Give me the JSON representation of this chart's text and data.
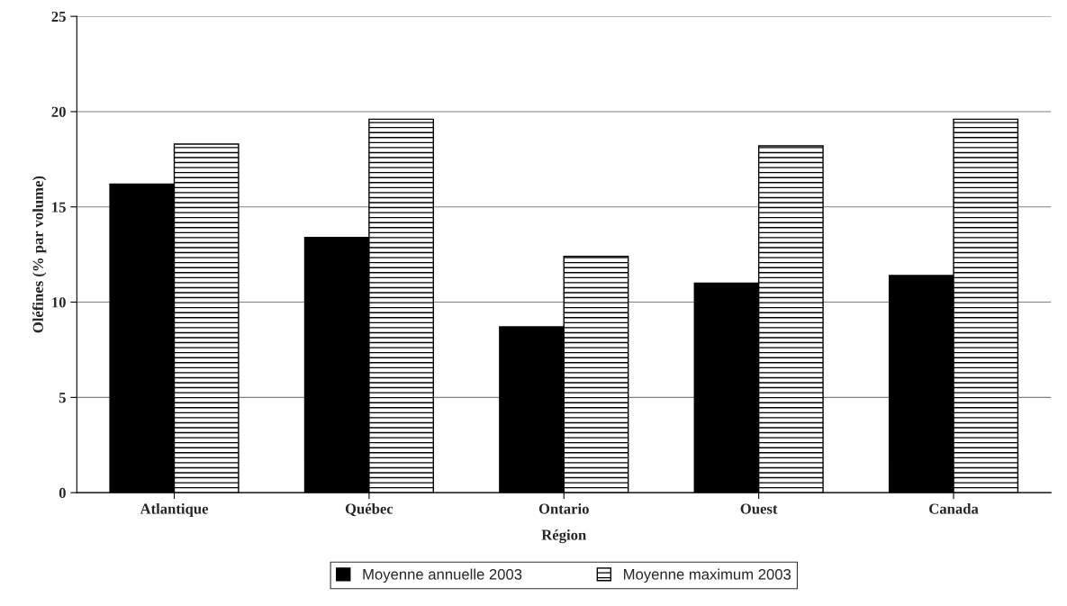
{
  "chart_data": {
    "type": "bar",
    "xlabel": "Région",
    "ylabel": "Oléfines (% par volume)",
    "categories": [
      "Atlantique",
      "Québec",
      "Ontario",
      "Ouest",
      "Canada"
    ],
    "series": [
      {
        "name": "Moyenne annuelle 2003",
        "color": "#000000",
        "values": [
          16.2,
          13.4,
          8.7,
          11.0,
          11.4
        ]
      },
      {
        "name": "Moyenne maximum 2003",
        "color": "#000000",
        "values": [
          18.3,
          19.6,
          12.4,
          18.2,
          19.6
        ]
      }
    ],
    "ylim": [
      0,
      25
    ],
    "yticks": [
      0,
      5,
      10,
      15,
      20,
      25
    ],
    "grid": "y",
    "legend": "bottom"
  }
}
